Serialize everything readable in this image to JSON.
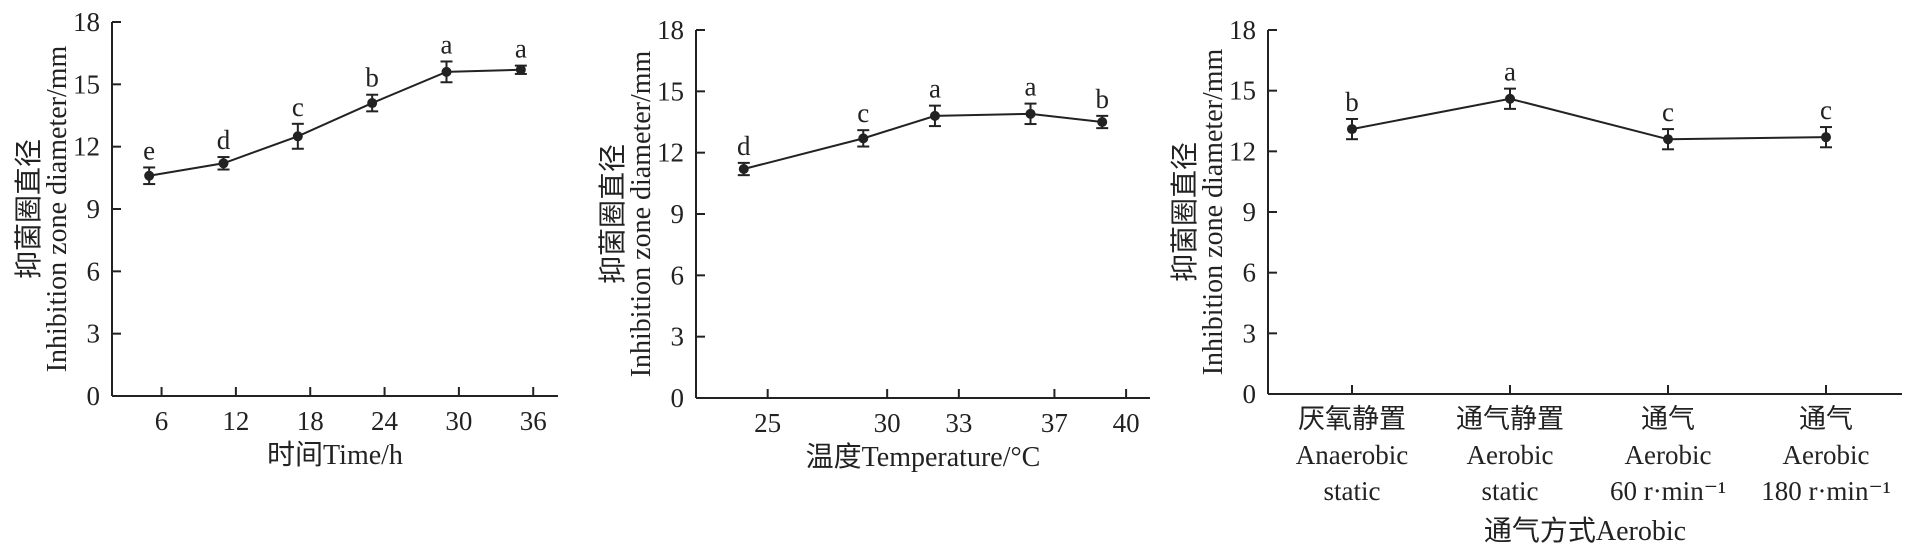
{
  "chart_data": [
    {
      "type": "line",
      "title": "",
      "xlabel": "时间Time/h",
      "ylabel_cn": "抑菌圈直径",
      "ylabel_en": "Inhibition zone diameter/mm",
      "xlim": [
        2,
        38
      ],
      "ylim": [
        0,
        18
      ],
      "xticks": [
        6,
        12,
        18,
        24,
        30,
        36
      ],
      "yticks": [
        0,
        3,
        6,
        9,
        12,
        15,
        18
      ],
      "x": [
        5,
        11,
        17,
        23,
        29,
        35
      ],
      "y": [
        10.6,
        11.2,
        12.5,
        14.1,
        15.6,
        15.7
      ],
      "err": [
        0.4,
        0.3,
        0.6,
        0.4,
        0.5,
        0.2
      ],
      "sig": [
        "e",
        "d",
        "c",
        "b",
        "a",
        "a"
      ]
    },
    {
      "type": "line",
      "title": "",
      "xlabel": "温度Temperature/°C",
      "ylabel_cn": "抑菌圈直径",
      "ylabel_en": "Inhibition zone diameter/mm",
      "xlim": [
        22,
        41
      ],
      "ylim": [
        0,
        18
      ],
      "xticks": [
        25,
        30,
        33,
        37,
        40
      ],
      "yticks": [
        0,
        3,
        6,
        9,
        12,
        15,
        18
      ],
      "x": [
        24,
        29,
        32,
        36,
        39
      ],
      "y": [
        11.2,
        12.7,
        13.8,
        13.9,
        13.5
      ],
      "err": [
        0.3,
        0.4,
        0.5,
        0.5,
        0.3
      ],
      "sig": [
        "d",
        "c",
        "a",
        "a",
        "b"
      ]
    },
    {
      "type": "line",
      "title": "",
      "xlabel": "通气方式Aerobic",
      "ylabel_cn": "抑菌圈直径",
      "ylabel_en": "Inhibition zone diameter/mm",
      "ylim": [
        0,
        18
      ],
      "yticks": [
        0,
        3,
        6,
        9,
        12,
        15,
        18
      ],
      "categories": [
        [
          "厌氧静置",
          "Anaerobic",
          "static"
        ],
        [
          "通气静置",
          "Aerobic",
          "static"
        ],
        [
          "通气",
          "Aerobic",
          "60 r·min⁻¹"
        ],
        [
          "通气",
          "Aerobic",
          "180 r·min⁻¹"
        ]
      ],
      "y": [
        13.1,
        14.6,
        12.6,
        12.7
      ],
      "err": [
        0.5,
        0.5,
        0.5,
        0.5
      ],
      "sig": [
        "b",
        "a",
        "c",
        "c"
      ]
    }
  ]
}
